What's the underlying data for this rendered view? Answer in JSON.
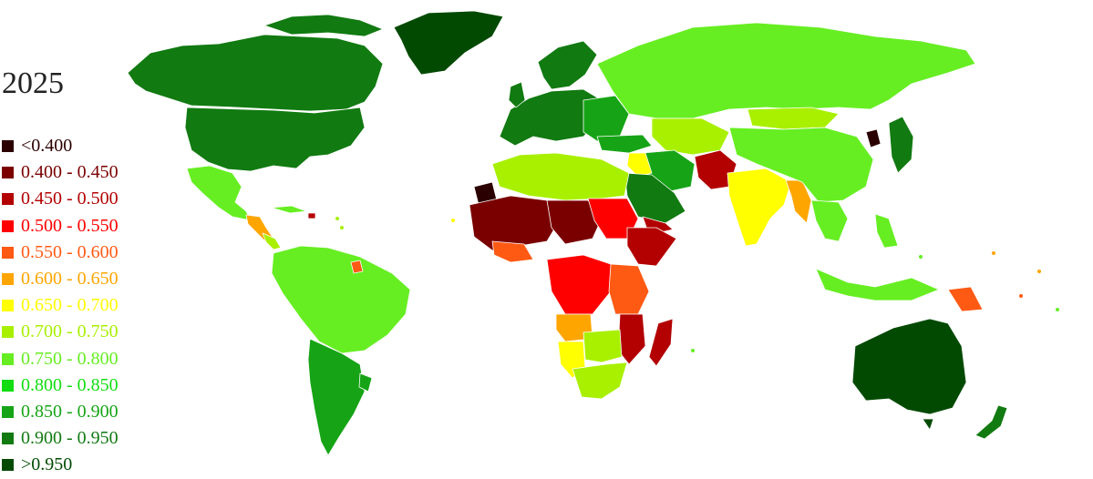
{
  "title": "2025",
  "legend": [
    {
      "label": "<0.400",
      "color": "#2b0000"
    },
    {
      "label": "0.400 - 0.450",
      "color": "#7a0000"
    },
    {
      "label": "0.450 - 0.500",
      "color": "#b30000"
    },
    {
      "label": "0.500 - 0.550",
      "color": "#ff0000"
    },
    {
      "label": "0.550 - 0.600",
      "color": "#ff5a14"
    },
    {
      "label": "0.600 - 0.650",
      "color": "#ffa500"
    },
    {
      "label": "0.650 - 0.700",
      "color": "#ffff00"
    },
    {
      "label": "0.700 - 0.750",
      "color": "#a8f000"
    },
    {
      "label": "0.750 - 0.800",
      "color": "#66ee22"
    },
    {
      "label": "0.800 - 0.850",
      "color": "#11dd11"
    },
    {
      "label": "0.850 - 0.900",
      "color": "#16a416"
    },
    {
      "label": "0.900 - 0.950",
      "color": "#117a11"
    },
    {
      "label": ">0.950",
      "color": "#024a02"
    }
  ]
}
